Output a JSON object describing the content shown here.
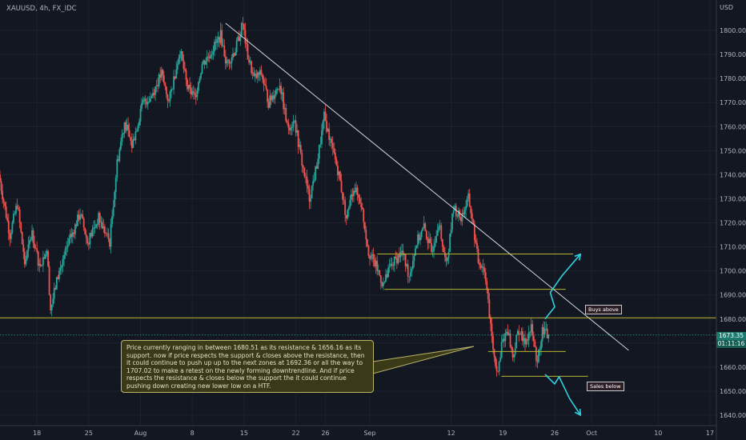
{
  "header": {
    "symbol": "XAUUSD, 4h, FX_IDC"
  },
  "axis": {
    "unit": "USD"
  },
  "chart_data": {
    "type": "candlestick",
    "title": "XAUUSD, 4h, FX_IDC",
    "ylim": [
      1636,
      1812
    ],
    "y_ticks": [
      1640,
      1650,
      1660,
      1670,
      1680,
      1690,
      1700,
      1710,
      1720,
      1730,
      1740,
      1750,
      1760,
      1770,
      1780,
      1790,
      1800
    ],
    "y_tick_labels": [
      "1640.00",
      "1650.00",
      "1660.00",
      "1670.00",
      "1680.00",
      "1690.00",
      "1700.00",
      "1710.00",
      "1720.00",
      "1730.00",
      "1740.00",
      "1750.00",
      "1760.00",
      "1770.00",
      "1780.00",
      "1790.00",
      "1800.00"
    ],
    "x_ticks": [
      {
        "label": "18",
        "day": 18
      },
      {
        "label": "25",
        "day": 25
      },
      {
        "label": "Aug",
        "day": 32
      },
      {
        "label": "8",
        "day": 39
      },
      {
        "label": "15",
        "day": 46
      },
      {
        "label": "22",
        "day": 53
      },
      {
        "label": "26",
        "day": 57
      },
      {
        "label": "Sep",
        "day": 63
      },
      {
        "label": "12",
        "day": 74
      },
      {
        "label": "19",
        "day": 81
      },
      {
        "label": "26",
        "day": 88
      },
      {
        "label": "Oct",
        "day": 93
      },
      {
        "label": "10",
        "day": 102
      },
      {
        "label": "17",
        "day": 109
      }
    ],
    "x_unit": "days from Jul 0 (Jul 18 = 18)",
    "current_price": "1673.35",
    "countdown": "01:11:16",
    "colors": {
      "up": "#26a69a",
      "down": "#ef5350",
      "trendline": "#d1d4dc",
      "level": "#b8b42e",
      "arrow": "#2fd0e0",
      "current": "#26a69a"
    },
    "path": [
      [
        13.0,
        1740
      ],
      [
        14.5,
        1715
      ],
      [
        15.5,
        1728
      ],
      [
        16.5,
        1703
      ],
      [
        17.5,
        1716
      ],
      [
        18.5,
        1702
      ],
      [
        19.5,
        1709
      ],
      [
        20.0,
        1684
      ],
      [
        21.0,
        1698
      ],
      [
        22.5,
        1712
      ],
      [
        24.0,
        1724
      ],
      [
        25.0,
        1712
      ],
      [
        26.5,
        1722
      ],
      [
        28.0,
        1712
      ],
      [
        29.0,
        1745
      ],
      [
        30.0,
        1762
      ],
      [
        31.0,
        1752
      ],
      [
        32.5,
        1770
      ],
      [
        33.5,
        1772
      ],
      [
        35.0,
        1782
      ],
      [
        36.0,
        1770
      ],
      [
        37.5,
        1792
      ],
      [
        38.5,
        1776
      ],
      [
        39.5,
        1772
      ],
      [
        40.5,
        1786
      ],
      [
        41.5,
        1790
      ],
      [
        43.0,
        1798
      ],
      [
        43.8,
        1786
      ],
      [
        45.0,
        1792
      ],
      [
        46.0,
        1803
      ],
      [
        46.6,
        1790
      ],
      [
        47.5,
        1780
      ],
      [
        48.5,
        1782
      ],
      [
        49.5,
        1770
      ],
      [
        51.0,
        1778
      ],
      [
        52.0,
        1760
      ],
      [
        53.0,
        1762
      ],
      [
        54.0,
        1745
      ],
      [
        55.0,
        1730
      ],
      [
        56.0,
        1744
      ],
      [
        57.0,
        1764
      ],
      [
        58.0,
        1752
      ],
      [
        59.0,
        1740
      ],
      [
        60.0,
        1722
      ],
      [
        61.0,
        1735
      ],
      [
        62.0,
        1728
      ],
      [
        63.0,
        1708
      ],
      [
        64.0,
        1702
      ],
      [
        65.0,
        1694
      ],
      [
        66.0,
        1702
      ],
      [
        67.5,
        1708
      ],
      [
        68.5,
        1698
      ],
      [
        69.5,
        1712
      ],
      [
        70.5,
        1718
      ],
      [
        71.5,
        1708
      ],
      [
        72.5,
        1720
      ],
      [
        73.5,
        1702
      ],
      [
        74.5,
        1726
      ],
      [
        75.5,
        1722
      ],
      [
        76.5,
        1730
      ],
      [
        77.0,
        1722
      ],
      [
        77.8,
        1704
      ],
      [
        78.5,
        1702
      ],
      [
        79.0,
        1694
      ],
      [
        79.5,
        1676
      ],
      [
        80.0,
        1664
      ],
      [
        80.5,
        1658
      ],
      [
        81.0,
        1670
      ],
      [
        81.8,
        1676
      ],
      [
        82.5,
        1664
      ],
      [
        83.3,
        1676
      ],
      [
        84.0,
        1670
      ],
      [
        85.0,
        1676
      ],
      [
        85.8,
        1662
      ],
      [
        86.5,
        1676
      ],
      [
        87.3,
        1673
      ]
    ],
    "levels": [
      {
        "name": "resistance-zone-1707",
        "price": 1707.02,
        "x_start": 64.0,
        "x_end": 90.5
      },
      {
        "name": "zone-1692",
        "price": 1692.36,
        "x_start": 65.0,
        "x_end": 89.5
      },
      {
        "name": "resistance-1680",
        "price": 1680.51,
        "x_start": 0,
        "x_end": 113
      },
      {
        "name": "mid-range-1666",
        "price": 1666.5,
        "x_start": 79.0,
        "x_end": 89.5
      },
      {
        "name": "support-1656",
        "price": 1656.16,
        "x_start": 80.8,
        "x_end": 92.5
      }
    ],
    "trendline": {
      "x1": 43.5,
      "y1": 1803,
      "x2": 98.0,
      "y2": 1667
    },
    "arrows": [
      {
        "name": "arrow-up",
        "points": [
          [
            86.7,
            1680
          ],
          [
            88.0,
            1685
          ],
          [
            87.4,
            1691
          ],
          [
            89.0,
            1698
          ],
          [
            91.5,
            1707
          ]
        ]
      },
      {
        "name": "arrow-down",
        "points": [
          [
            86.7,
            1657
          ],
          [
            88.0,
            1653
          ],
          [
            88.6,
            1656
          ],
          [
            90.0,
            1647
          ],
          [
            91.5,
            1640
          ]
        ]
      }
    ],
    "annotation": "Price currently ranging in between 1680.51 as its resistance & 1656.16 as its support. now if price respects the support & closes above the resistance, then it could continue to push up up to the next zones at 1692.36 or all the way to 1707.02 to make a retest on the newly forming downtrendline. And if price respects the resistance & closes below the support the it could continue pushing down creating new lower low on a HTF.",
    "labels": {
      "buys": "Buys above",
      "sales": "Sales below"
    }
  }
}
